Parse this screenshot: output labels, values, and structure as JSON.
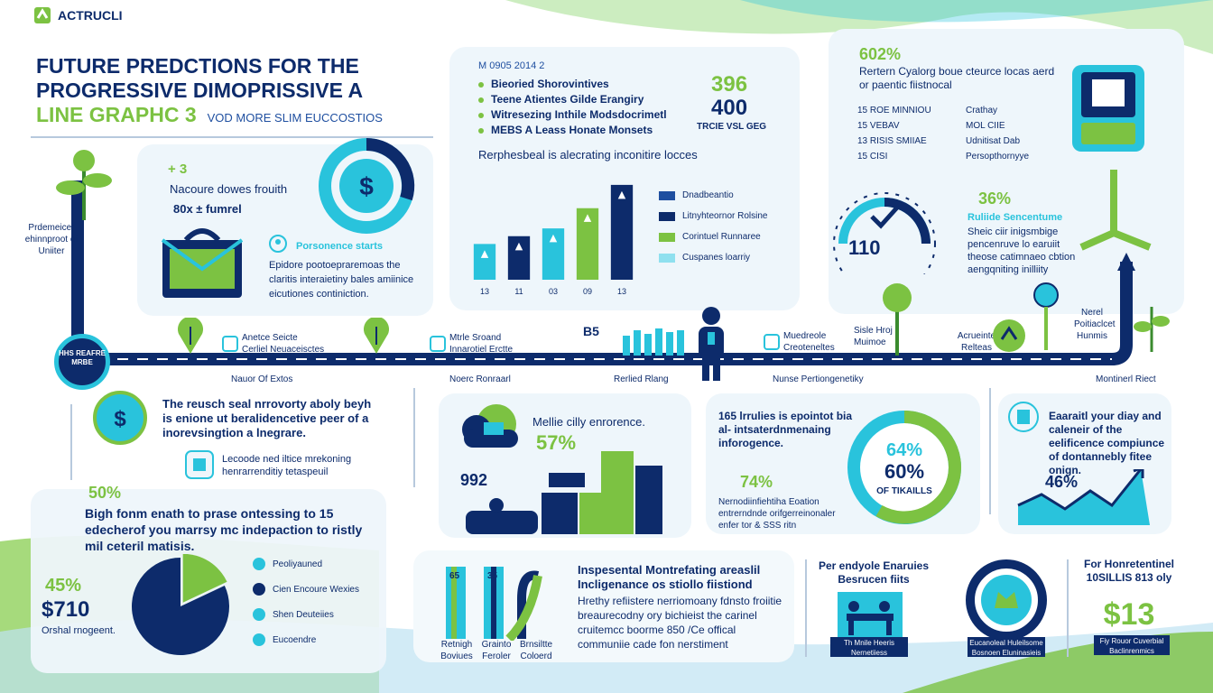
{
  "header": {
    "logo": "ACTRUCLI",
    "title_line1": "FUTURE PREDCTIONS FOR THE",
    "title_line2": "PROGRESSIVE DIMOPRISSIVE A",
    "title_line3": "LINE GRAPHC 3",
    "subtitle": "VOD MORE SLIM EUCCOSTIOS"
  },
  "card_left": {
    "badge": "+ 3",
    "heading": "Nacoure dowes frouith",
    "stat": "80x ± fumrel",
    "feature_title": "Porsonence starts",
    "feature_text": "Epidore pootoepraremoas the claritis interaietiny bales amiinice eicutiones continiction."
  },
  "legend_card": {
    "tag": "M 0905 2014 2",
    "items": [
      "Bieoried Shorovintives",
      "Teene Atientes Gilde Erangiry",
      "Witresezing Inthile Modsdocrimetl",
      "MEBS A Leass Honate Monsets"
    ],
    "big1": "396",
    "big2": "400",
    "big_label": "TRCIE VSL GEG",
    "chart_caption": "Rerphesbeal is alecrating inconitire locces",
    "chart_legend": [
      "Dnadbeantio",
      "Litnyhteornor Rolsine",
      "Corintuel Runnaree",
      "Cuspanes loarriy"
    ]
  },
  "chart_data": {
    "type": "bar",
    "title": "",
    "categories": [
      "13",
      "11",
      "03",
      "09",
      "13"
    ],
    "series": [
      {
        "values": [
          46,
          0,
          0,
          0,
          0
        ]
      },
      {
        "values": [
          0,
          56,
          0,
          0,
          0
        ]
      },
      {
        "values": [
          0,
          0,
          66,
          0,
          0
        ]
      },
      {
        "values": [
          0,
          0,
          0,
          92,
          0
        ]
      },
      {
        "values": [
          0,
          0,
          0,
          0,
          122
        ]
      }
    ],
    "colors": [
      "#29c3dc",
      "#0d2b6b",
      "#29c3dc",
      "#7cc242",
      "#0d2b6b"
    ],
    "ylim": [
      0,
      130
    ]
  },
  "right_card": {
    "pct": "602%",
    "heading": "Rertern Cyalorg boue cteurce locas aerd or paentic fiistnocal",
    "list_left": [
      "15 ROE MINNIOU",
      "15 VEBAV",
      "13 RISIS SMIIAE",
      "15 CISI"
    ],
    "list_right": [
      "Crathay",
      "MOL CIIE",
      "Udnitisat Dab",
      "Persopthornyye"
    ],
    "gauge_value": "110",
    "pct2": "36%",
    "feature_title": "Ruliide Sencentume",
    "feature_text": "Sheic ciir inigsmbige pencenruve lo earuiit theose catimnaeo cbtion aengqniting inilliity"
  },
  "timeline": {
    "start_label": "Prdemeicer ehinnproot of Uniiter",
    "start_badge": "HHS REAFRE MRBE",
    "items": [
      "Anetce Seicte Cerliel Neuaceisctes",
      "Mtrle Sroand Innarotiel Erctte",
      "B5",
      "Muedreole Creoteneltes",
      "Sisle Hroj Muimoe",
      "Acrueinte Relteas",
      "Nerel Poitiaclcet Hunmis"
    ],
    "lower": [
      "Nauor Of Extos",
      "Noerc Ronraarl",
      "Rerlied Rlang",
      "Nunse Pertiongenetiky",
      "Montinerl Riect"
    ]
  },
  "row2": {
    "money_text": "The reusch seal nrrovorty aboly beyh is enione ut beralidencetive peer of a inorevsingtion a lnegrare.",
    "cert_text": "Lecoode ned iltice mrekoning henrarrenditiy tetaspeuil",
    "city_title": "Mellie cilly enrorence.",
    "city_pct": "57%",
    "city_num": "992",
    "ring_text": "165 lrrulies is epointot bia al- intsaterdnmenaing inforogence.",
    "ring_pct_small": "74%",
    "ring_small_text": "Nernodiinfiehtiha Eoation entrerndnde orifgerreinonaler enfer tor & SSS ritn",
    "ring_pct1": "64%",
    "ring_pct2": "60%",
    "ring_label": "OF TIKAILLS",
    "trend_text": "Eaaraitl your diay and caleneir of the eelificence compiunce of dontannebly fitee onign.",
    "trend_pct": "46%"
  },
  "bottom_left": {
    "pct": "50%",
    "text": "Bigh fonm enath to prase ontessing to 15 edecherof you marrsy mc indepaction to ristly mil ceteril matisis.",
    "pct2": "45%",
    "money": "$710",
    "caption": "Orshal rnogeent.",
    "pie_legend": [
      "Peoliyauned",
      "Cien Encoure Wexies",
      "Shen Deuteiies",
      "Eucoendre"
    ]
  },
  "pie_data": {
    "values": [
      82,
      18
    ],
    "colors": [
      "#0d2b6b",
      "#7cc242"
    ]
  },
  "bottom_right": {
    "bar_labels": [
      "Retnigh Boviues",
      "Grainto Feroler",
      "Brnsiltte Coloerd"
    ],
    "bar_nums": [
      "65",
      "35"
    ],
    "heading": "Inspesental Montrefating areaslil Incligenance os stiollo fiistiond",
    "text": "Hrethy refiistere nerriomoany fdnsto froiitie breaurecodny ory bichieist the carinel cruitemcc boorme 850 /Ce offical communiie cade fon nerstiment",
    "card1_title": "Per endyole Enaruies Besrucen fiits",
    "card1_caption": "Th Mnile Heeris Nernetiiess",
    "card2_caption": "Eucanoleal Huleilsome Bosnoen Eluninasieis",
    "card3_title": "For Honretentinel 10SILLIS 813 oly",
    "card3_money": "$13",
    "card3_caption": "Fiy Rouor Cuverbial Baclinrenmics"
  }
}
